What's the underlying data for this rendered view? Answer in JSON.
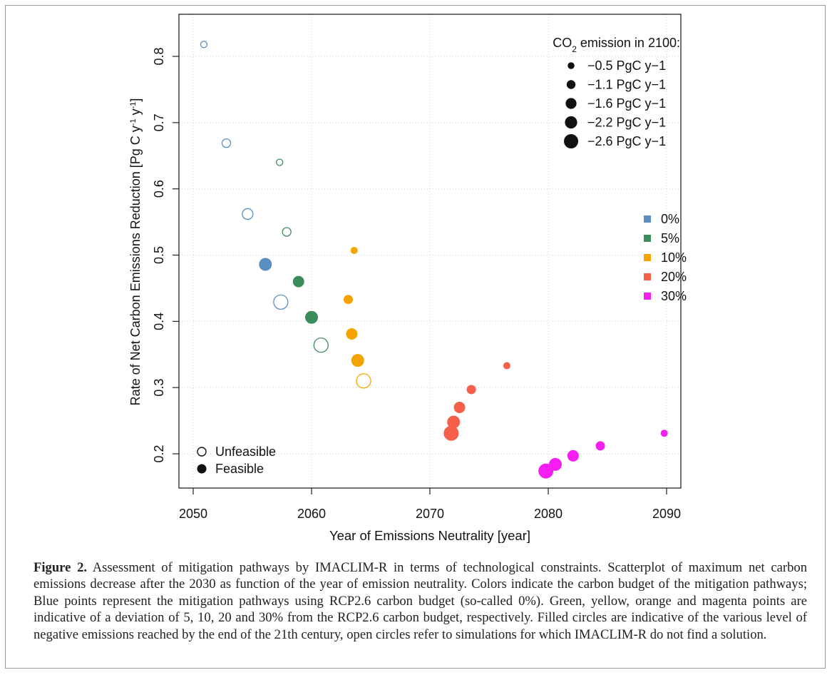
{
  "chart_data": {
    "type": "scatter",
    "xlabel": "Year of Emissions Neutrality [year]",
    "ylabel_main": "Rate of Net Carbon Emissions Reduction  [Pg C y",
    "ylabel_sup1": "-1",
    "ylabel_mid": " y",
    "ylabel_sup2": "-1",
    "ylabel_end": "]",
    "xlim": [
      2050,
      2090
    ],
    "ylim": [
      0.15,
      0.85
    ],
    "xticks": [
      "2050",
      "2060",
      "2070",
      "2080",
      "2090"
    ],
    "yticks": [
      "0.2",
      "0.3",
      "0.4",
      "0.5",
      "0.6",
      "0.7",
      "0.8"
    ],
    "grid": true,
    "size_legend": {
      "title_pre": "CO",
      "title_sub": "2",
      "title_post": " emission in 2100:",
      "entries": [
        "−0.5 PgC y−1",
        "−1.1 PgC y−1",
        "−1.6 PgC y−1",
        "−2.2 PgC y−1",
        "−2.6 PgC y−1"
      ]
    },
    "color_legend": [
      {
        "label": "0%",
        "color": "#5b8fc2"
      },
      {
        "label": "5%",
        "color": "#3d8c5c"
      },
      {
        "label": "10%",
        "color": "#f5a300"
      },
      {
        "label": "20%",
        "color": "#f4604a"
      },
      {
        "label": "30%",
        "color": "#f51ef0"
      }
    ],
    "feasibility_legend": [
      "Unfeasible",
      "Feasible"
    ],
    "series": [
      {
        "group": "0%",
        "color": "#5b8fc2",
        "points": [
          {
            "x": 2050.9,
            "y": 0.818,
            "size": 0,
            "filled": false
          },
          {
            "x": 2052.8,
            "y": 0.669,
            "size": 1,
            "filled": false
          },
          {
            "x": 2054.6,
            "y": 0.562,
            "size": 2,
            "filled": false
          },
          {
            "x": 2056.1,
            "y": 0.486,
            "size": 3,
            "filled": true
          },
          {
            "x": 2057.4,
            "y": 0.429,
            "size": 4,
            "filled": false
          }
        ]
      },
      {
        "group": "5%",
        "color": "#3d8c5c",
        "points": [
          {
            "x": 2057.3,
            "y": 0.64,
            "size": 0,
            "filled": false
          },
          {
            "x": 2057.9,
            "y": 0.535,
            "size": 1,
            "filled": false
          },
          {
            "x": 2058.9,
            "y": 0.46,
            "size": 2,
            "filled": true
          },
          {
            "x": 2060.0,
            "y": 0.406,
            "size": 3,
            "filled": true
          },
          {
            "x": 2060.8,
            "y": 0.364,
            "size": 4,
            "filled": false
          }
        ]
      },
      {
        "group": "10%",
        "color": "#f5a300",
        "points": [
          {
            "x": 2063.6,
            "y": 0.507,
            "size": 0,
            "filled": true
          },
          {
            "x": 2063.1,
            "y": 0.433,
            "size": 1,
            "filled": true
          },
          {
            "x": 2063.4,
            "y": 0.381,
            "size": 2,
            "filled": true
          },
          {
            "x": 2063.9,
            "y": 0.341,
            "size": 3,
            "filled": true
          },
          {
            "x": 2064.4,
            "y": 0.31,
            "size": 4,
            "filled": false
          }
        ]
      },
      {
        "group": "20%",
        "color": "#f4604a",
        "points": [
          {
            "x": 2076.5,
            "y": 0.333,
            "size": 0,
            "filled": true
          },
          {
            "x": 2073.5,
            "y": 0.297,
            "size": 1,
            "filled": true
          },
          {
            "x": 2072.5,
            "y": 0.27,
            "size": 2,
            "filled": true
          },
          {
            "x": 2072.0,
            "y": 0.248,
            "size": 3,
            "filled": true
          },
          {
            "x": 2071.8,
            "y": 0.231,
            "size": 4,
            "filled": true
          }
        ]
      },
      {
        "group": "30%",
        "color": "#f51ef0",
        "points": [
          {
            "x": 2089.8,
            "y": 0.231,
            "size": 0,
            "filled": true
          },
          {
            "x": 2084.4,
            "y": 0.212,
            "size": 1,
            "filled": true
          },
          {
            "x": 2082.1,
            "y": 0.197,
            "size": 2,
            "filled": true
          },
          {
            "x": 2080.6,
            "y": 0.184,
            "size": 3,
            "filled": true
          },
          {
            "x": 2079.8,
            "y": 0.174,
            "size": 4,
            "filled": true
          }
        ]
      }
    ]
  },
  "caption": {
    "label": "Figure 2.",
    "text": " Assessment of mitigation pathways by IMACLIM-R in terms of technological constraints. Scatterplot of maximum net carbon emissions decrease after the 2030 as function of the year of emission neutrality. Colors indicate the carbon budget of the mitigation pathways; Blue points represent the mitigation pathways using RCP2.6 carbon budget (so-called 0%). Green, yellow, orange and magenta points are indicative of a deviation of 5, 10, 20 and 30% from the RCP2.6 carbon budget, respectively. Filled circles are indicative of the various level of negative emissions reached by the end of the 21th century, open circles refer to simulations for which IMACLIM-R do not find a solution."
  }
}
